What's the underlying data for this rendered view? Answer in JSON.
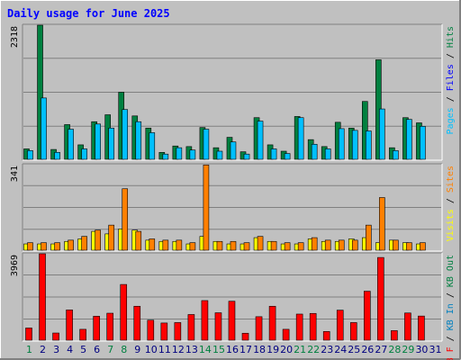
{
  "title": "Daily usage for June 2025",
  "colors": {
    "frame_bg": "#c0c0c0",
    "plot_bg": "#c0c0c0",
    "title": "#0000ff",
    "hits": "#008040",
    "pages": "#00c0ff",
    "visits": "#ffff00",
    "sites": "#ff8000",
    "kbin": "#0080c0",
    "kbout": "#008040",
    "kbf": "#ff0000",
    "weekend_label": "#008040",
    "weekday_label": "#000080"
  },
  "panels": [
    {
      "id": "top",
      "ymax_label": "2318",
      "right_label_parts": [
        {
          "text": "Pages",
          "color": "#00c0ff"
        },
        {
          "text": " / ",
          "color": "#000000"
        },
        {
          "text": "Files",
          "color": "#0000ff"
        },
        {
          "text": " / ",
          "color": "#000000"
        },
        {
          "text": "Hits",
          "color": "#008040"
        }
      ]
    },
    {
      "id": "middle",
      "ymax_label": "341",
      "right_label_parts": [
        {
          "text": "Visits",
          "color": "#ffff00"
        },
        {
          "text": " / ",
          "color": "#000000"
        },
        {
          "text": "Sites",
          "color": "#ff8000"
        }
      ]
    },
    {
      "id": "bottom",
      "ymax_label": "3969",
      "right_label_parts": [
        {
          "text": "KB F",
          "color": "#ff0000"
        },
        {
          "text": " / ",
          "color": "#000000"
        },
        {
          "text": "KB In",
          "color": "#0080c0"
        },
        {
          "text": " / ",
          "color": "#000000"
        },
        {
          "text": "KB Out",
          "color": "#008040"
        }
      ]
    }
  ],
  "chart_data": {
    "type": "bar",
    "title": "Daily usage for June 2025",
    "x": [
      1,
      2,
      3,
      4,
      5,
      6,
      7,
      8,
      9,
      10,
      11,
      12,
      13,
      14,
      15,
      16,
      17,
      18,
      19,
      20,
      21,
      22,
      23,
      24,
      25,
      26,
      27,
      28,
      29,
      30,
      31
    ],
    "weekend_days": [
      1,
      7,
      8,
      14,
      15,
      21,
      22,
      28,
      29
    ],
    "series_top": {
      "ymax": 2318,
      "hits": [
        180,
        2318,
        170,
        600,
        250,
        650,
        770,
        1160,
        750,
        540,
        120,
        230,
        220,
        550,
        200,
        380,
        130,
        720,
        250,
        140,
        740,
        340,
        220,
        640,
        540,
        1000,
        1720,
        200,
        720,
        630
      ],
      "pages": [
        150,
        1060,
        120,
        520,
        180,
        610,
        540,
        860,
        650,
        460,
        90,
        200,
        160,
        520,
        140,
        300,
        90,
        660,
        180,
        100,
        720,
        260,
        180,
        530,
        500,
        490,
        870,
        150,
        690,
        570
      ]
    },
    "series_middle": {
      "ymax": 341,
      "visits": [
        25,
        25,
        25,
        35,
        45,
        75,
        65,
        85,
        80,
        40,
        35,
        35,
        25,
        55,
        35,
        25,
        25,
        50,
        35,
        25,
        25,
        45,
        35,
        35,
        45,
        50,
        30,
        40,
        30,
        25
      ],
      "sites": [
        30,
        30,
        30,
        40,
        55,
        80,
        100,
        245,
        75,
        45,
        40,
        40,
        30,
        340,
        35,
        35,
        30,
        55,
        35,
        30,
        30,
        50,
        40,
        40,
        40,
        100,
        210,
        40,
        30,
        30
      ]
    },
    "series_bottom": {
      "ymax": 3969,
      "kbf": [
        560,
        3969,
        330,
        1390,
        500,
        1100,
        1240,
        2560,
        1560,
        920,
        790,
        810,
        1180,
        1820,
        1260,
        1790,
        320,
        1080,
        1560,
        500,
        1200,
        1230,
        400,
        1380,
        810,
        2250,
        3800,
        440,
        1250,
        1110
      ]
    }
  }
}
